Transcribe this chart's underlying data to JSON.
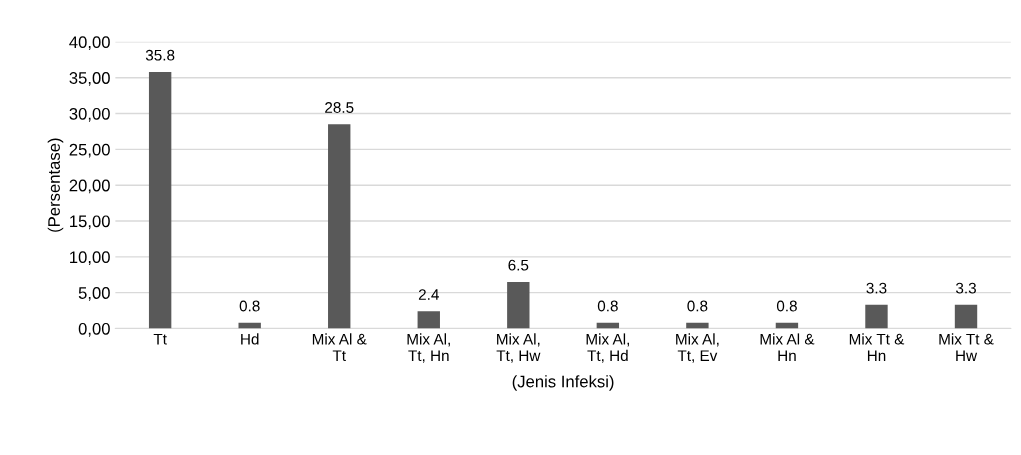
{
  "chart_data": {
    "type": "bar",
    "xlabel": "(Jenis Infeksi)",
    "ylabel": "(Persentase)",
    "categories": [
      "Tt",
      "Hd",
      "Mix Al &\nTt",
      "Mix Al,\nTt, Hn",
      "Mix Al,\nTt, Hw",
      "Mix Al,\nTt, Hd",
      "Mix Al,\nTt, Ev",
      "Mix Al &\nHn",
      "Mix Tt &\nHn",
      "Mix Tt &\nHw"
    ],
    "values": [
      35.8,
      0.8,
      28.5,
      2.4,
      6.5,
      0.8,
      0.8,
      0.8,
      3.3,
      3.3
    ],
    "color": "#595959",
    "data_labels": true,
    "grid": "y",
    "legend": false,
    "ylim": [
      0,
      40
    ],
    "yticks": [
      {
        "value": 0,
        "label": "0,00"
      },
      {
        "value": 5,
        "label": "5,00"
      },
      {
        "value": 10,
        "label": "10,00"
      },
      {
        "value": 15,
        "label": "15,00"
      },
      {
        "value": 20,
        "label": "20,00"
      },
      {
        "value": 25,
        "label": "25,00"
      },
      {
        "value": 30,
        "label": "30,00"
      },
      {
        "value": 35,
        "label": "35,00"
      },
      {
        "value": 40,
        "label": "40,00"
      }
    ]
  }
}
